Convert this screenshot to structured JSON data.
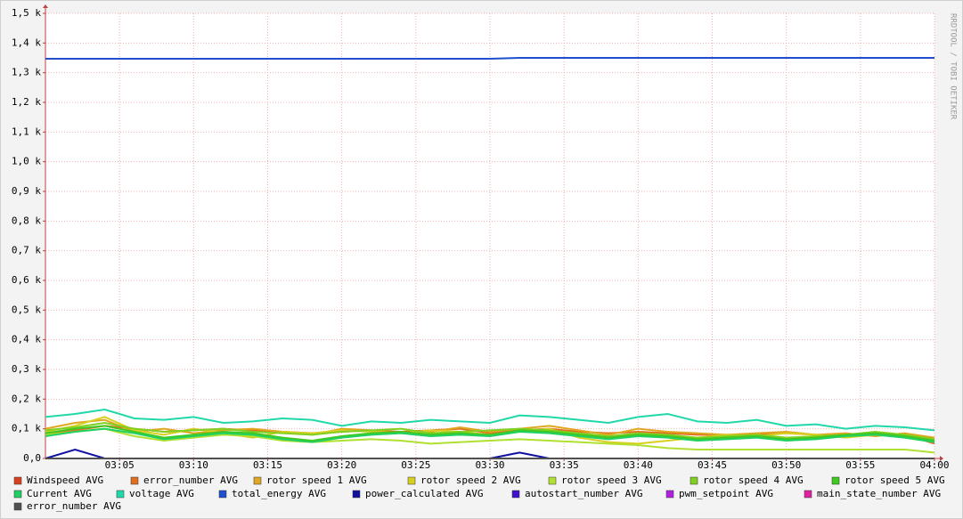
{
  "chart_data": {
    "type": "line",
    "watermark": "RRDTOOL / TOBI OETIKER",
    "x": [
      180,
      182,
      184,
      186,
      188,
      190,
      192,
      194,
      196,
      198,
      200,
      202,
      204,
      206,
      208,
      210,
      212,
      214,
      216,
      218,
      220,
      222,
      224,
      226,
      228,
      230,
      232,
      234,
      236,
      238,
      240
    ],
    "xlim": [
      180,
      240
    ],
    "xticks": [
      {
        "value": 185,
        "label": "03:05"
      },
      {
        "value": 190,
        "label": "03:10"
      },
      {
        "value": 195,
        "label": "03:15"
      },
      {
        "value": 200,
        "label": "03:20"
      },
      {
        "value": 205,
        "label": "03:25"
      },
      {
        "value": 210,
        "label": "03:30"
      },
      {
        "value": 215,
        "label": "03:35"
      },
      {
        "value": 220,
        "label": "03:40"
      },
      {
        "value": 225,
        "label": "03:45"
      },
      {
        "value": 230,
        "label": "03:50"
      },
      {
        "value": 235,
        "label": "03:55"
      },
      {
        "value": 240,
        "label": "04:00"
      }
    ],
    "ylim": [
      0,
      1500
    ],
    "yticks": [
      {
        "value": 0,
        "label": "0,0"
      },
      {
        "value": 100,
        "label": "0,1 k"
      },
      {
        "value": 200,
        "label": "0,2 k"
      },
      {
        "value": 300,
        "label": "0,3 k"
      },
      {
        "value": 400,
        "label": "0,4 k"
      },
      {
        "value": 500,
        "label": "0,5 k"
      },
      {
        "value": 600,
        "label": "0,6 k"
      },
      {
        "value": 700,
        "label": "0,7 k"
      },
      {
        "value": 800,
        "label": "0,8 k"
      },
      {
        "value": 900,
        "label": "0,9 k"
      },
      {
        "value": 1000,
        "label": "1,0 k"
      },
      {
        "value": 1100,
        "label": "1,1 k"
      },
      {
        "value": 1200,
        "label": "1,2 k"
      },
      {
        "value": 1300,
        "label": "1,3 k"
      },
      {
        "value": 1400,
        "label": "1,4 k"
      },
      {
        "value": 1500,
        "label": "1,5 k"
      }
    ],
    "grid": true,
    "series": [
      {
        "name": "Windspeed AVG",
        "color": "#d94020",
        "values": [
          0,
          0,
          0,
          0,
          0,
          0,
          0,
          0,
          0,
          0,
          0,
          0,
          0,
          0,
          0,
          0,
          0,
          0,
          0,
          0,
          0,
          0,
          0,
          0,
          0,
          0,
          0,
          0,
          0,
          0,
          0
        ]
      },
      {
        "name": "error_number AVG",
        "color": "#e07020",
        "values": [
          85,
          95,
          110,
          100,
          90,
          95,
          100,
          95,
          90,
          85,
          90,
          95,
          90,
          95,
          100,
          85,
          95,
          100,
          90,
          85,
          90,
          85,
          80,
          80,
          80,
          85,
          80,
          75,
          80,
          80,
          50
        ]
      },
      {
        "name": "rotor speed 1 AVG",
        "color": "#e0a820",
        "values": [
          100,
          120,
          130,
          90,
          100,
          85,
          95,
          100,
          90,
          80,
          100,
          95,
          85,
          90,
          105,
          90,
          100,
          110,
          95,
          80,
          100,
          90,
          85,
          80,
          85,
          90,
          80,
          85,
          75,
          85,
          70
        ]
      },
      {
        "name": "rotor speed 2 AVG",
        "color": "#d8d020",
        "values": [
          90,
          110,
          140,
          95,
          80,
          100,
          85,
          70,
          90,
          85,
          95,
          90,
          85,
          95,
          90,
          80,
          90,
          100,
          70,
          55,
          50,
          60,
          70,
          80,
          75,
          85,
          80,
          70,
          80,
          75,
          60
        ]
      },
      {
        "name": "rotor speed 3 AVG",
        "color": "#b0e030",
        "values": [
          80,
          90,
          100,
          75,
          60,
          70,
          80,
          75,
          60,
          55,
          60,
          65,
          60,
          50,
          55,
          60,
          65,
          60,
          55,
          50,
          45,
          35,
          30,
          30,
          30,
          30,
          30,
          30,
          30,
          30,
          20
        ]
      },
      {
        "name": "rotor speed 4 AVG",
        "color": "#80d020",
        "values": [
          95,
          105,
          120,
          100,
          90,
          95,
          100,
          90,
          85,
          80,
          90,
          95,
          100,
          85,
          90,
          95,
          100,
          95,
          85,
          75,
          85,
          80,
          70,
          75,
          80,
          70,
          75,
          80,
          90,
          80,
          65
        ]
      },
      {
        "name": "rotor speed 5 AVG",
        "color": "#40c820",
        "values": [
          85,
          100,
          110,
          90,
          70,
          80,
          90,
          85,
          70,
          60,
          75,
          85,
          90,
          80,
          85,
          80,
          95,
          90,
          80,
          70,
          80,
          75,
          65,
          70,
          75,
          65,
          70,
          80,
          85,
          75,
          60
        ]
      },
      {
        "name": "Current AVG",
        "color": "#20d060",
        "values": [
          75,
          90,
          100,
          85,
          65,
          75,
          85,
          80,
          65,
          55,
          70,
          80,
          85,
          75,
          80,
          75,
          90,
          85,
          75,
          65,
          75,
          70,
          60,
          65,
          70,
          60,
          65,
          75,
          80,
          70,
          55
        ]
      },
      {
        "name": "voltage AVG",
        "color": "#20d8a8",
        "values": [
          140,
          150,
          165,
          135,
          130,
          140,
          120,
          125,
          135,
          130,
          110,
          125,
          120,
          130,
          125,
          120,
          145,
          140,
          130,
          120,
          140,
          150,
          125,
          120,
          130,
          110,
          115,
          100,
          110,
          105,
          95
        ]
      },
      {
        "name": "total_energy AVG",
        "color": "#2050d0",
        "values": [
          1347,
          1347,
          1347,
          1347,
          1347,
          1347,
          1347,
          1347,
          1347,
          1347,
          1347,
          1347,
          1347,
          1347,
          1347,
          1347,
          1350,
          1350,
          1350,
          1350,
          1350,
          1350,
          1350,
          1350,
          1350,
          1350,
          1350,
          1350,
          1350,
          1350,
          1350
        ]
      },
      {
        "name": "power_calculated AVG",
        "color": "#1010a0",
        "values": [
          0,
          30,
          0,
          0,
          0,
          0,
          0,
          0,
          0,
          0,
          0,
          0,
          0,
          0,
          0,
          0,
          20,
          0,
          0,
          0,
          0,
          0,
          0,
          0,
          0,
          0,
          0,
          0,
          0,
          0,
          0
        ]
      },
      {
        "name": "autostart_number AVG",
        "color": "#4010d0",
        "values": [
          0,
          0,
          0,
          0,
          0,
          0,
          0,
          0,
          0,
          0,
          0,
          0,
          0,
          0,
          0,
          0,
          0,
          0,
          0,
          0,
          0,
          0,
          0,
          0,
          0,
          0,
          0,
          0,
          0,
          0,
          0
        ]
      },
      {
        "name": "pwm_setpoint AVG",
        "color": "#b020e0",
        "values": [
          0,
          0,
          0,
          0,
          0,
          0,
          0,
          0,
          0,
          0,
          0,
          0,
          0,
          0,
          0,
          0,
          0,
          0,
          0,
          0,
          0,
          0,
          0,
          0,
          0,
          0,
          0,
          0,
          0,
          0,
          0
        ]
      },
      {
        "name": "main_state_number AVG",
        "color": "#e020a0",
        "values": [
          0,
          0,
          0,
          0,
          0,
          0,
          0,
          0,
          0,
          0,
          0,
          0,
          0,
          0,
          0,
          0,
          0,
          0,
          0,
          0,
          0,
          0,
          0,
          0,
          0,
          0,
          0,
          0,
          0,
          0,
          0
        ]
      },
      {
        "name": "error_number AVG",
        "color": "#505050",
        "values": [
          0,
          0,
          0,
          0,
          0,
          0,
          0,
          0,
          0,
          0,
          0,
          0,
          0,
          0,
          0,
          0,
          0,
          0,
          0,
          0,
          0,
          0,
          0,
          0,
          0,
          0,
          0,
          0,
          0,
          0,
          0
        ]
      }
    ]
  }
}
